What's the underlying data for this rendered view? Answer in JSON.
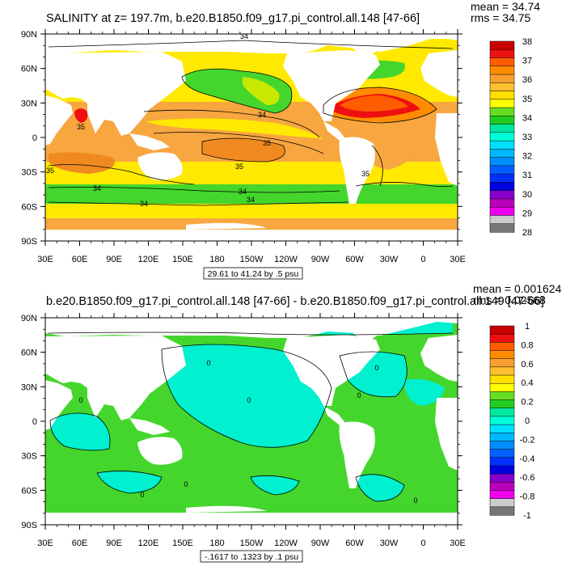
{
  "chart_data": [
    {
      "type": "heatmap",
      "title": "SALINITY at z= 197.7m, b.e20.B1850.f09_g17.pi_control.all.148 [47-66]",
      "stats": [
        "mean = 34.74",
        "rms = 34.75"
      ],
      "x_tick_labels": [
        "30E",
        "60E",
        "90E",
        "120E",
        "150E",
        "180",
        "150W",
        "120W",
        "90W",
        "60W",
        "30W",
        "0",
        "30E"
      ],
      "y_tick_labels": [
        "90N",
        "60N",
        "30N",
        "0",
        "30S",
        "60S",
        "90S"
      ],
      "range_label": "29.61 to 41.24 by .5 psu",
      "colorbar_labels": [
        "38",
        "37",
        "36",
        "35",
        "34",
        "33",
        "32",
        "31",
        "30",
        "29",
        "28"
      ],
      "contour_labels": [
        "34",
        "34",
        "35",
        "35",
        "35",
        "34",
        "34",
        "34",
        "35",
        "34",
        "35"
      ],
      "colorbar_colors": [
        "#c80000",
        "#ee1010",
        "#ff5c00",
        "#ff8c00",
        "#f7a030",
        "#ffc030",
        "#ffe000",
        "#ffff00",
        "#66dd22",
        "#22cc22",
        "#00e8a0",
        "#00ffd8",
        "#00e0ff",
        "#00b8ff",
        "#0090ff",
        "#0060ff",
        "#0030ff",
        "#0000e0",
        "#8800cc",
        "#bb00bb",
        "#ee00ee",
        "#cccccc",
        "#777777"
      ]
    },
    {
      "type": "heatmap",
      "title": "b.e20.B1850.f09_g17.pi_control.all.148 [47-66] - b.e20.B1850.f09_g17.pi_control.all.149 [47-66]",
      "stats": [
        "mean = 0.001624",
        "rms = 0.02568"
      ],
      "x_tick_labels": [
        "30E",
        "60E",
        "90E",
        "120E",
        "150E",
        "180",
        "150W",
        "120W",
        "90W",
        "60W",
        "30W",
        "0",
        "30E"
      ],
      "y_tick_labels": [
        "90N",
        "60N",
        "30N",
        "0",
        "30S",
        "60S",
        "90S"
      ],
      "range_label": "-.1617 to .1323 by .1 psu",
      "colorbar_labels": [
        "1",
        "0.8",
        "0.6",
        "0.4",
        "0.2",
        "0",
        "-0.2",
        "-0.4",
        "-0.6",
        "-0.8",
        "-1"
      ],
      "contour_labels": [
        "0",
        "0",
        "0",
        "0",
        "0",
        "0",
        "0",
        "0"
      ],
      "colorbar_colors": [
        "#c80000",
        "#ee1010",
        "#ff5c00",
        "#ff8c00",
        "#f7a030",
        "#ffc030",
        "#ffe000",
        "#ffff00",
        "#66dd22",
        "#22cc22",
        "#00e8a0",
        "#00ffd8",
        "#00e0ff",
        "#00b8ff",
        "#0090ff",
        "#0060ff",
        "#0030ff",
        "#0000e0",
        "#8800cc",
        "#bb00bb",
        "#ee00ee",
        "#cccccc",
        "#777777"
      ]
    }
  ]
}
